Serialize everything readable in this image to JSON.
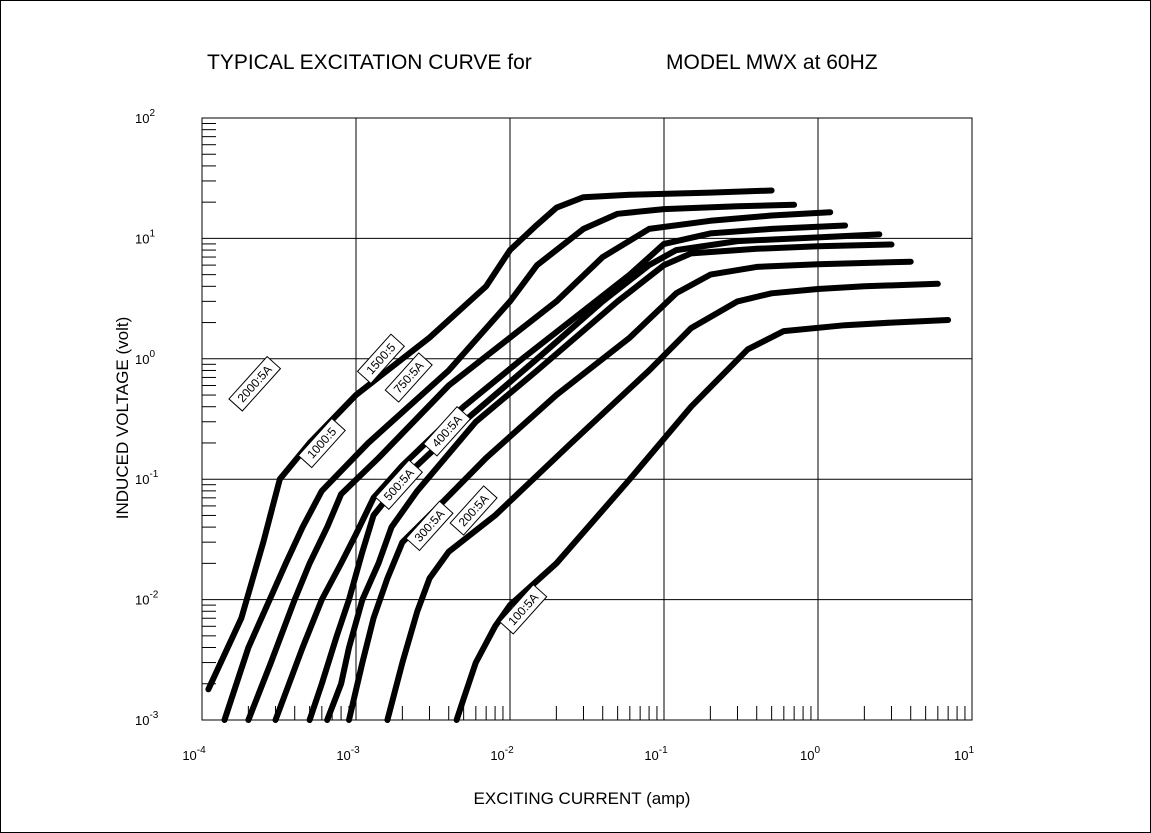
{
  "chart_data": {
    "type": "line",
    "title_left": "TYPICAL EXCITATION CURVE for",
    "title_right": "MODEL MWX at 60HZ",
    "xlabel": "EXCITING CURRENT (amp)",
    "ylabel": "INDUCED VOLTAGE (volt)",
    "x_scale": "log",
    "y_scale": "log",
    "xlim": [
      0.0001,
      10
    ],
    "ylim": [
      0.001,
      100
    ],
    "x_ticks": [
      {
        "base": "10",
        "exp": "-4"
      },
      {
        "base": "10",
        "exp": "-3"
      },
      {
        "base": "10",
        "exp": "-2"
      },
      {
        "base": "10",
        "exp": "-1"
      },
      {
        "base": "10",
        "exp": "0"
      },
      {
        "base": "10",
        "exp": "1"
      }
    ],
    "y_ticks": [
      {
        "base": "10",
        "exp": "-3"
      },
      {
        "base": "10",
        "exp": "-2"
      },
      {
        "base": "10",
        "exp": "-1"
      },
      {
        "base": "10",
        "exp": "0"
      },
      {
        "base": "10",
        "exp": "1"
      },
      {
        "base": "10",
        "exp": "2"
      }
    ],
    "grid": true,
    "series": [
      {
        "name": "2000:5A",
        "label_at": [
          0.00022,
          0.62
        ],
        "points": [
          [
            0.00011,
            0.0018
          ],
          [
            0.00018,
            0.007
          ],
          [
            0.00025,
            0.03
          ],
          [
            0.00032,
            0.1
          ],
          [
            0.0005,
            0.2
          ],
          [
            0.001,
            0.5
          ],
          [
            0.003,
            1.5
          ],
          [
            0.007,
            4
          ],
          [
            0.01,
            8
          ],
          [
            0.015,
            13
          ],
          [
            0.02,
            18
          ],
          [
            0.03,
            22
          ],
          [
            0.06,
            23
          ],
          [
            0.2,
            24
          ],
          [
            0.5,
            25
          ]
        ]
      },
      {
        "name": "1500:5",
        "label_at": [
          0.00145,
          1.0
        ],
        "points": [
          [
            0.00014,
            0.001
          ],
          [
            0.0002,
            0.004
          ],
          [
            0.00035,
            0.02
          ],
          [
            0.00045,
            0.04
          ],
          [
            0.0006,
            0.08
          ],
          [
            0.0012,
            0.2
          ],
          [
            0.004,
            0.8
          ],
          [
            0.01,
            3
          ],
          [
            0.015,
            6
          ],
          [
            0.03,
            12
          ],
          [
            0.05,
            16
          ],
          [
            0.1,
            17.5
          ],
          [
            0.3,
            18.5
          ],
          [
            0.7,
            19
          ]
        ]
      },
      {
        "name": "1000:5",
        "label_at": [
          0.0006,
          0.2
        ],
        "points": [
          [
            0.0002,
            0.001
          ],
          [
            0.00028,
            0.003
          ],
          [
            0.0004,
            0.01
          ],
          [
            0.0005,
            0.02
          ],
          [
            0.00065,
            0.04
          ],
          [
            0.0008,
            0.075
          ],
          [
            0.0014,
            0.15
          ],
          [
            0.004,
            0.6
          ],
          [
            0.01,
            1.5
          ],
          [
            0.02,
            3
          ],
          [
            0.04,
            7
          ],
          [
            0.08,
            12
          ],
          [
            0.2,
            14
          ],
          [
            0.5,
            15.5
          ],
          [
            1.2,
            16.5
          ]
        ]
      },
      {
        "name": "750:5A",
        "label_at": [
          0.0022,
          0.7
        ],
        "points": [
          [
            0.0003,
            0.001
          ],
          [
            0.00045,
            0.004
          ],
          [
            0.0006,
            0.01
          ],
          [
            0.0008,
            0.02
          ],
          [
            0.001,
            0.035
          ],
          [
            0.0013,
            0.07
          ],
          [
            0.002,
            0.13
          ],
          [
            0.005,
            0.4
          ],
          [
            0.012,
            1
          ],
          [
            0.03,
            2.5
          ],
          [
            0.06,
            5
          ],
          [
            0.1,
            9
          ],
          [
            0.2,
            11
          ],
          [
            0.5,
            12
          ],
          [
            1.5,
            12.8
          ]
        ]
      },
      {
        "name": "500:5A",
        "label_at": [
          0.0019,
          0.09
        ],
        "points": [
          [
            0.0005,
            0.001
          ],
          [
            0.0006,
            0.002
          ],
          [
            0.00075,
            0.005
          ],
          [
            0.0009,
            0.01
          ],
          [
            0.0011,
            0.025
          ],
          [
            0.0013,
            0.05
          ],
          [
            0.002,
            0.1
          ],
          [
            0.005,
            0.3
          ],
          [
            0.015,
            1
          ],
          [
            0.04,
            3
          ],
          [
            0.08,
            6
          ],
          [
            0.12,
            8
          ],
          [
            0.3,
            9.5
          ],
          [
            1,
            10.2
          ],
          [
            2.5,
            10.8
          ]
        ]
      },
      {
        "name": "400:5A",
        "label_at": [
          0.0039,
          0.25
        ],
        "points": [
          [
            0.00065,
            0.001
          ],
          [
            0.0008,
            0.002
          ],
          [
            0.0009,
            0.004
          ],
          [
            0.0011,
            0.01
          ],
          [
            0.0014,
            0.02
          ],
          [
            0.0017,
            0.04
          ],
          [
            0.0025,
            0.08
          ],
          [
            0.006,
            0.3
          ],
          [
            0.015,
            0.8
          ],
          [
            0.05,
            3
          ],
          [
            0.1,
            6
          ],
          [
            0.15,
            7.5
          ],
          [
            0.4,
            8.2
          ],
          [
            1,
            8.6
          ],
          [
            3,
            8.9
          ]
        ]
      },
      {
        "name": "300:5A",
        "label_at": [
          0.003,
          0.041
        ],
        "points": [
          [
            0.0009,
            0.001
          ],
          [
            0.0011,
            0.003
          ],
          [
            0.0013,
            0.007
          ],
          [
            0.0016,
            0.015
          ],
          [
            0.002,
            0.03
          ],
          [
            0.003,
            0.05
          ],
          [
            0.007,
            0.15
          ],
          [
            0.02,
            0.5
          ],
          [
            0.06,
            1.5
          ],
          [
            0.12,
            3.5
          ],
          [
            0.2,
            5
          ],
          [
            0.4,
            5.8
          ],
          [
            1,
            6.1
          ],
          [
            4,
            6.4
          ]
        ]
      },
      {
        "name": "200:5A",
        "label_at": [
          0.0058,
          0.055
        ],
        "points": [
          [
            0.0016,
            0.001
          ],
          [
            0.002,
            0.003
          ],
          [
            0.0025,
            0.008
          ],
          [
            0.003,
            0.015
          ],
          [
            0.004,
            0.025
          ],
          [
            0.008,
            0.05
          ],
          [
            0.025,
            0.2
          ],
          [
            0.08,
            0.8
          ],
          [
            0.15,
            1.8
          ],
          [
            0.3,
            3
          ],
          [
            0.5,
            3.5
          ],
          [
            1,
            3.8
          ],
          [
            2,
            4
          ],
          [
            6,
            4.2
          ]
        ]
      },
      {
        "name": "100:5A",
        "label_at": [
          0.0122,
          0.0083
        ],
        "points": [
          [
            0.0045,
            0.001
          ],
          [
            0.005,
            0.0015
          ],
          [
            0.006,
            0.003
          ],
          [
            0.008,
            0.006
          ],
          [
            0.01,
            0.009
          ],
          [
            0.02,
            0.02
          ],
          [
            0.06,
            0.1
          ],
          [
            0.15,
            0.4
          ],
          [
            0.35,
            1.2
          ],
          [
            0.6,
            1.7
          ],
          [
            1.5,
            1.9
          ],
          [
            3,
            2
          ],
          [
            7,
            2.1
          ]
        ]
      }
    ]
  }
}
